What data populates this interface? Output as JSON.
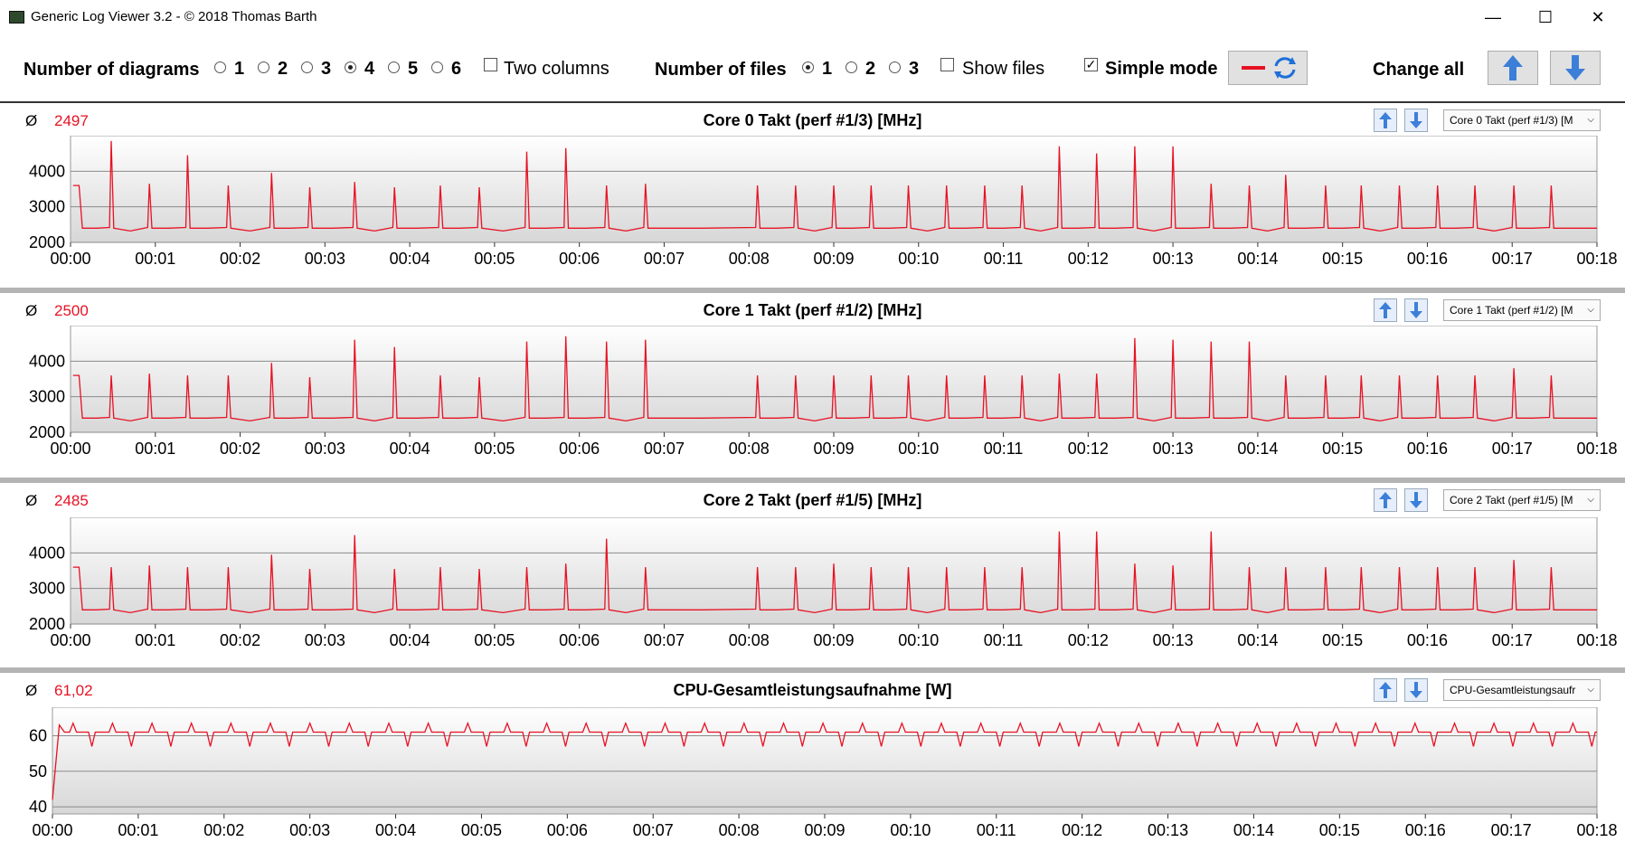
{
  "window": {
    "title": "Generic Log Viewer 3.2 - © 2018 Thomas Barth",
    "minimize": "—",
    "maximize": "☐",
    "close": "✕"
  },
  "toolbar": {
    "num_diagrams_label": "Number of diagrams",
    "diagram_options": [
      "1",
      "2",
      "3",
      "4",
      "5",
      "6"
    ],
    "diagram_selected": "4",
    "two_columns_label": "Two columns",
    "two_columns_checked": false,
    "num_files_label": "Number of files",
    "file_options": [
      "1",
      "2",
      "3"
    ],
    "file_selected": "1",
    "show_files_label": "Show files",
    "show_files_checked": false,
    "simple_mode_label": "Simple mode",
    "simple_mode_checked": true,
    "change_all_label": "Change all",
    "colors": {
      "accent": "#e81123",
      "arrow": "#3c7fd8"
    }
  },
  "panels": [
    {
      "avg_symbol": "Ø",
      "avg_value": "2497",
      "title": "Core 0 Takt (perf #1/3) [MHz]",
      "combo": "Core 0 Takt (perf #1/3) [M",
      "chart_data": {
        "type": "line",
        "ylim": [
          2000,
          5000
        ],
        "yticks": [
          "2000",
          "3000",
          "4000"
        ],
        "xticks": [
          "00:00",
          "00:01",
          "00:02",
          "00:03",
          "00:04",
          "00:05",
          "00:06",
          "00:07",
          "00:08",
          "00:09",
          "00:10",
          "00:11",
          "00:12",
          "00:13",
          "00:14",
          "00:15",
          "00:16",
          "00:17",
          "00:18"
        ],
        "baseline": 2400,
        "series": [
          {
            "color": "#e81123",
            "start": 3600,
            "spikes": [
              [
                0.48,
                4850
              ],
              [
                0.93,
                3650
              ],
              [
                1.38,
                4450
              ],
              [
                1.86,
                3600
              ],
              [
                2.37,
                3950
              ],
              [
                2.82,
                3550
              ],
              [
                3.35,
                3700
              ],
              [
                3.82,
                3550
              ],
              [
                4.36,
                3600
              ],
              [
                4.82,
                3550
              ],
              [
                5.38,
                4550
              ],
              [
                5.84,
                4650
              ],
              [
                6.32,
                3600
              ],
              [
                6.78,
                3650
              ],
              [
                8.1,
                3600
              ],
              [
                8.55,
                3600
              ],
              [
                9.0,
                3600
              ],
              [
                9.44,
                3600
              ],
              [
                9.88,
                3600
              ],
              [
                10.33,
                3600
              ],
              [
                10.78,
                3600
              ],
              [
                11.22,
                3600
              ],
              [
                11.66,
                4700
              ],
              [
                12.1,
                4500
              ],
              [
                12.55,
                4700
              ],
              [
                13.0,
                4700
              ],
              [
                13.45,
                3650
              ],
              [
                13.9,
                3600
              ],
              [
                14.33,
                3900
              ],
              [
                14.8,
                3600
              ],
              [
                15.22,
                3600
              ],
              [
                15.67,
                3600
              ],
              [
                16.12,
                3600
              ],
              [
                16.56,
                3600
              ],
              [
                17.02,
                3600
              ],
              [
                17.46,
                3600
              ]
            ]
          }
        ]
      }
    },
    {
      "avg_symbol": "Ø",
      "avg_value": "2500",
      "title": "Core 1 Takt (perf #1/2) [MHz]",
      "combo": "Core 1 Takt (perf #1/2) [M",
      "chart_data": {
        "type": "line",
        "ylim": [
          2000,
          5000
        ],
        "yticks": [
          "2000",
          "3000",
          "4000"
        ],
        "xticks": [
          "00:00",
          "00:01",
          "00:02",
          "00:03",
          "00:04",
          "00:05",
          "00:06",
          "00:07",
          "00:08",
          "00:09",
          "00:10",
          "00:11",
          "00:12",
          "00:13",
          "00:14",
          "00:15",
          "00:16",
          "00:17",
          "00:18"
        ],
        "baseline": 2400,
        "series": [
          {
            "color": "#e81123",
            "start": 3600,
            "spikes": [
              [
                0.48,
                3600
              ],
              [
                0.93,
                3650
              ],
              [
                1.38,
                3600
              ],
              [
                1.86,
                3600
              ],
              [
                2.37,
                3950
              ],
              [
                2.82,
                3550
              ],
              [
                3.35,
                4600
              ],
              [
                3.82,
                4400
              ],
              [
                4.36,
                3600
              ],
              [
                4.82,
                3550
              ],
              [
                5.38,
                4550
              ],
              [
                5.84,
                4700
              ],
              [
                6.32,
                4550
              ],
              [
                6.78,
                4600
              ],
              [
                8.1,
                3600
              ],
              [
                8.55,
                3600
              ],
              [
                9.0,
                3600
              ],
              [
                9.44,
                3600
              ],
              [
                9.88,
                3600
              ],
              [
                10.33,
                3600
              ],
              [
                10.78,
                3600
              ],
              [
                11.22,
                3600
              ],
              [
                11.66,
                3650
              ],
              [
                12.1,
                3650
              ],
              [
                12.55,
                4650
              ],
              [
                13.0,
                4600
              ],
              [
                13.45,
                4550
              ],
              [
                13.9,
                4550
              ],
              [
                14.33,
                3600
              ],
              [
                14.8,
                3600
              ],
              [
                15.22,
                3600
              ],
              [
                15.67,
                3600
              ],
              [
                16.12,
                3600
              ],
              [
                16.56,
                3600
              ],
              [
                17.02,
                3800
              ],
              [
                17.46,
                3600
              ]
            ]
          }
        ]
      }
    },
    {
      "avg_symbol": "Ø",
      "avg_value": "2485",
      "title": "Core 2 Takt (perf #1/5) [MHz]",
      "combo": "Core 2 Takt (perf #1/5) [M",
      "chart_data": {
        "type": "line",
        "ylim": [
          2000,
          5000
        ],
        "yticks": [
          "2000",
          "3000",
          "4000"
        ],
        "xticks": [
          "00:00",
          "00:01",
          "00:02",
          "00:03",
          "00:04",
          "00:05",
          "00:06",
          "00:07",
          "00:08",
          "00:09",
          "00:10",
          "00:11",
          "00:12",
          "00:13",
          "00:14",
          "00:15",
          "00:16",
          "00:17",
          "00:18"
        ],
        "baseline": 2400,
        "series": [
          {
            "color": "#e81123",
            "start": 3600,
            "spikes": [
              [
                0.48,
                3600
              ],
              [
                0.93,
                3650
              ],
              [
                1.38,
                3600
              ],
              [
                1.86,
                3600
              ],
              [
                2.37,
                3950
              ],
              [
                2.82,
                3550
              ],
              [
                3.35,
                4500
              ],
              [
                3.82,
                3550
              ],
              [
                4.36,
                3600
              ],
              [
                4.82,
                3550
              ],
              [
                5.38,
                3600
              ],
              [
                5.84,
                3700
              ],
              [
                6.32,
                4400
              ],
              [
                6.78,
                3600
              ],
              [
                8.1,
                3600
              ],
              [
                8.55,
                3600
              ],
              [
                9.0,
                3700
              ],
              [
                9.44,
                3600
              ],
              [
                9.88,
                3600
              ],
              [
                10.33,
                3600
              ],
              [
                10.78,
                3600
              ],
              [
                11.22,
                3600
              ],
              [
                11.66,
                4600
              ],
              [
                12.1,
                4600
              ],
              [
                12.55,
                3700
              ],
              [
                13.0,
                3650
              ],
              [
                13.45,
                4600
              ],
              [
                13.9,
                3600
              ],
              [
                14.33,
                3600
              ],
              [
                14.8,
                3600
              ],
              [
                15.22,
                3600
              ],
              [
                15.67,
                3600
              ],
              [
                16.12,
                3600
              ],
              [
                16.56,
                3600
              ],
              [
                17.02,
                3800
              ],
              [
                17.46,
                3600
              ]
            ]
          }
        ]
      }
    },
    {
      "avg_symbol": "Ø",
      "avg_value": "61,02",
      "title": "CPU-Gesamtleistungsaufnahme [W]",
      "combo": "CPU-Gesamtleistungsaufr",
      "chart_data": {
        "type": "line",
        "ylim": [
          38,
          68
        ],
        "yticks": [
          "40",
          "50",
          "60"
        ],
        "xticks": [
          "00:00",
          "00:01",
          "00:02",
          "00:03",
          "00:04",
          "00:05",
          "00:06",
          "00:07",
          "00:08",
          "00:09",
          "00:10",
          "00:11",
          "00:12",
          "00:13",
          "00:14",
          "00:15",
          "00:16",
          "00:17",
          "00:18"
        ],
        "baseline": 61,
        "series": [
          {
            "color": "#e81123",
            "start": 42,
            "power": true
          }
        ]
      }
    }
  ]
}
